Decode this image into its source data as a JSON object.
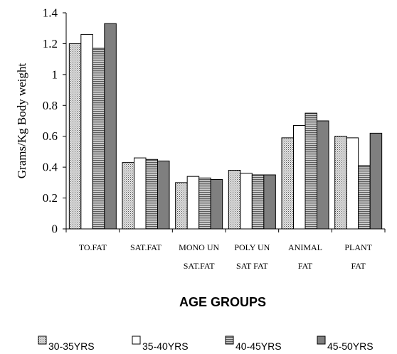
{
  "chart_data": {
    "type": "bar",
    "categories": [
      [
        "TO.FAT"
      ],
      [
        "SAT.FAT"
      ],
      [
        "MONO UN",
        "SAT.FAT"
      ],
      [
        "POLY UN",
        "SAT FAT"
      ],
      [
        "ANIMAL",
        "FAT"
      ],
      [
        "PLANT",
        "FAT"
      ]
    ],
    "series": [
      {
        "name": "30-35YRS",
        "values": [
          1.2,
          0.43,
          0.3,
          0.38,
          0.59,
          0.6
        ],
        "pattern": "dots",
        "color": "#c8c8c8"
      },
      {
        "name": "35-40YRS",
        "values": [
          1.26,
          0.46,
          0.34,
          0.36,
          0.67,
          0.59
        ],
        "pattern": "none",
        "color": "#ffffff"
      },
      {
        "name": "40-45YRS",
        "values": [
          1.17,
          0.45,
          0.33,
          0.35,
          0.75,
          0.41
        ],
        "pattern": "hstripes",
        "color": "#a8a8a8"
      },
      {
        "name": "45-50YRS",
        "values": [
          1.33,
          0.44,
          0.32,
          0.35,
          0.7,
          0.62
        ],
        "pattern": "none",
        "color": "#7f7f7f"
      }
    ],
    "xlabel": "AGE GROUPS",
    "ylabel": "Grams/Kg Body weight",
    "ylim": [
      0,
      1.4
    ],
    "yticks": [
      "0",
      "0.2",
      "0.4",
      "0.6",
      "0.8",
      "1",
      "1.2",
      "1.4"
    ],
    "grid": false,
    "legend_position": "bottom"
  }
}
